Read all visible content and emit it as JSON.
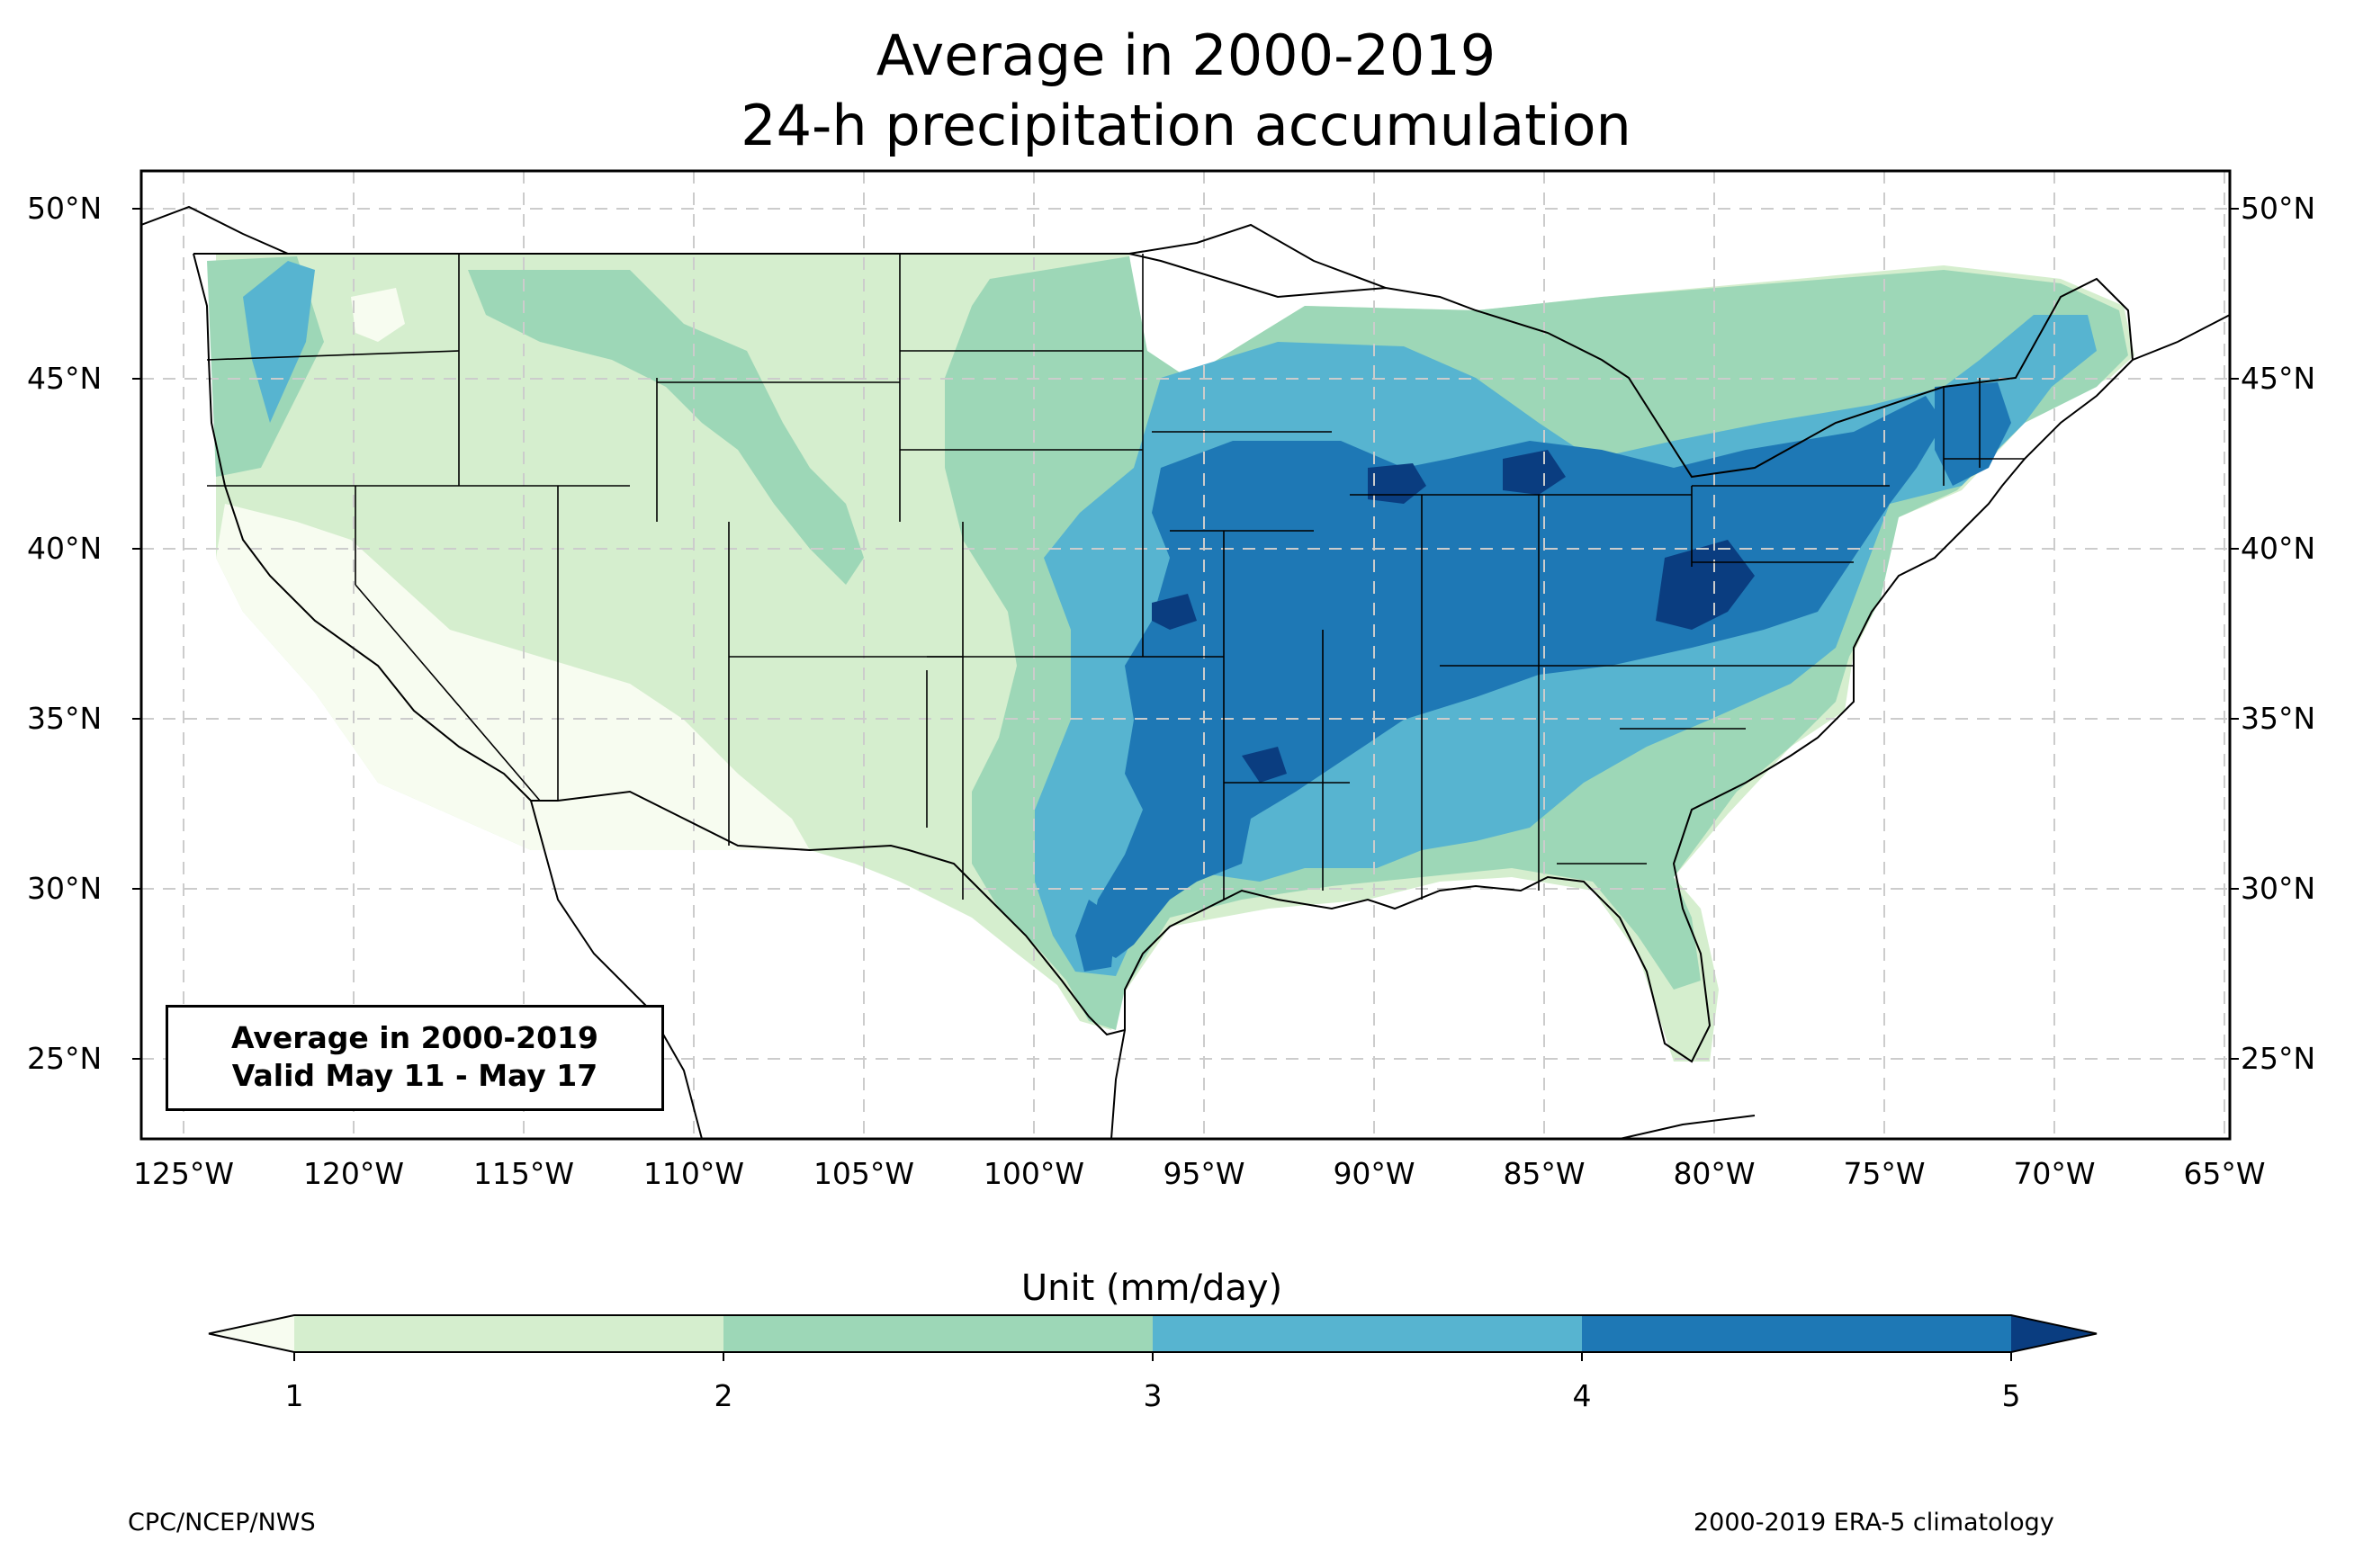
{
  "title": {
    "line1": "Average in 2000-2019",
    "line2": "24-h precipitation accumulation"
  },
  "map": {
    "region": "CONUS",
    "projection": "PlateCarree",
    "lon_range": [
      -126.3,
      -64.9
    ],
    "lat_range": [
      22.8,
      51.2
    ],
    "grid": true,
    "lat_labels": [
      "50°N",
      "45°N",
      "40°N",
      "35°N",
      "30°N",
      "25°N"
    ],
    "lon_labels": [
      "125°W",
      "120°W",
      "115°W",
      "110°W",
      "105°W",
      "100°W",
      "95°W",
      "90°W",
      "85°W",
      "80°W",
      "75°W",
      "70°W",
      "65°W"
    ]
  },
  "infobox": {
    "line1": "Average in 2000-2019",
    "line2": "Valid May 11 - May 17"
  },
  "colorbar": {
    "title": "Unit (mm/day)",
    "ticks": [
      "1",
      "2",
      "3",
      "4",
      "5"
    ],
    "levels": [
      1,
      2,
      3,
      4,
      5
    ],
    "colors": [
      "#f7fcf0",
      "#d5eece",
      "#9dd7b7",
      "#57b4d0",
      "#1e78b5",
      "#0a3d80"
    ],
    "extend": "both"
  },
  "footer": {
    "left": "CPC/NCEP/NWS",
    "right": "2000-2019 ERA-5 climatology"
  }
}
